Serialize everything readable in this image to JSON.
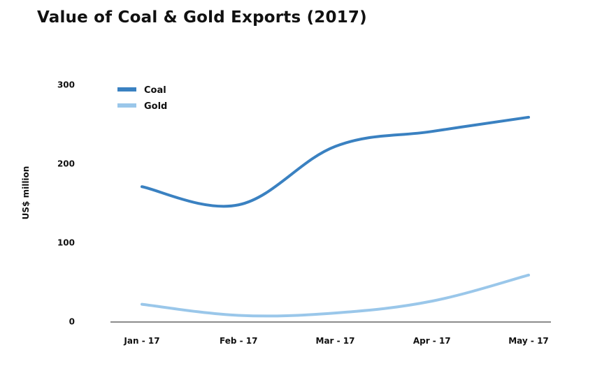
{
  "chart_data": {
    "type": "line",
    "title": "Value of Coal & Gold Exports (2017)",
    "xlabel": "",
    "ylabel": "US$ million",
    "categories": [
      "Jan - 17",
      "Feb - 17",
      "Mar - 17",
      "Apr - 17",
      "May - 17"
    ],
    "ylim": [
      0,
      300
    ],
    "yticks": [
      0,
      100,
      200,
      300
    ],
    "grid": false,
    "legend": "top-left",
    "series": [
      {
        "name": "Coal",
        "color": "#3a81c1",
        "values": [
          171,
          148,
          222,
          241,
          259
        ]
      },
      {
        "name": "Gold",
        "color": "#9ac7ea",
        "values": [
          22,
          8,
          11,
          26,
          59
        ]
      }
    ]
  }
}
